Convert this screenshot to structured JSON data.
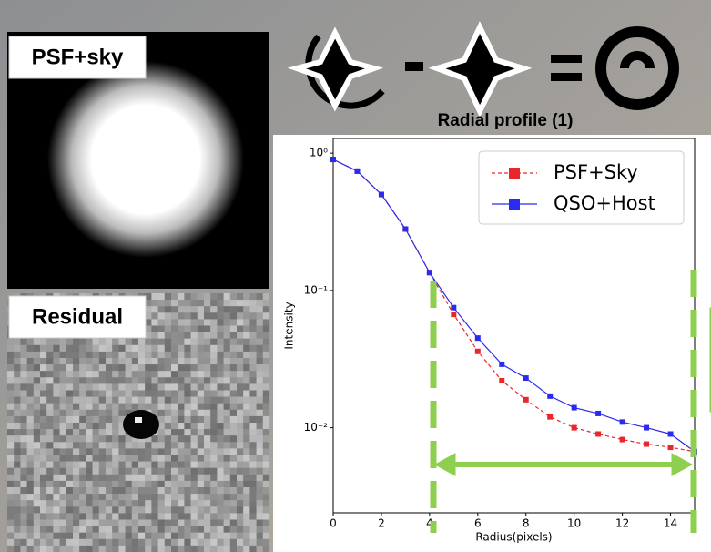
{
  "panels": {
    "psf_label": "PSF+sky",
    "residual_label": "Residual"
  },
  "chart_data": {
    "type": "line",
    "title": "Radial profile (1)",
    "xlabel": "Radius(pixels)",
    "ylabel": "Intensity",
    "x": [
      0,
      1,
      2,
      3,
      4,
      5,
      6,
      7,
      8,
      9,
      10,
      11,
      12,
      13,
      14,
      15
    ],
    "series": [
      {
        "name": "PSF+Sky",
        "color": "#e8262b",
        "dashed": true,
        "values": [
          0.9,
          0.74,
          0.5,
          0.28,
          0.135,
          0.067,
          0.036,
          0.022,
          0.016,
          0.012,
          0.01,
          0.009,
          0.0082,
          0.0076,
          0.0072,
          0.0067
        ]
      },
      {
        "name": "QSO+Host",
        "color": "#2b2bf0",
        "dashed": false,
        "values": [
          0.9,
          0.74,
          0.5,
          0.28,
          0.135,
          0.075,
          0.045,
          0.029,
          0.023,
          0.017,
          0.014,
          0.0127,
          0.011,
          0.01,
          0.009,
          0.0067
        ]
      }
    ],
    "xlim": [
      0,
      15
    ],
    "xticks": [
      0,
      2,
      4,
      6,
      8,
      10,
      12,
      14
    ],
    "ylim": [
      0.0024,
      1.28
    ],
    "yscale": "log",
    "yticks": [
      {
        "value": 1,
        "label": "10⁰"
      },
      {
        "value": 0.1,
        "label": "10⁻¹"
      },
      {
        "value": 0.01,
        "label": "10⁻²"
      }
    ],
    "legend": "upper right"
  }
}
